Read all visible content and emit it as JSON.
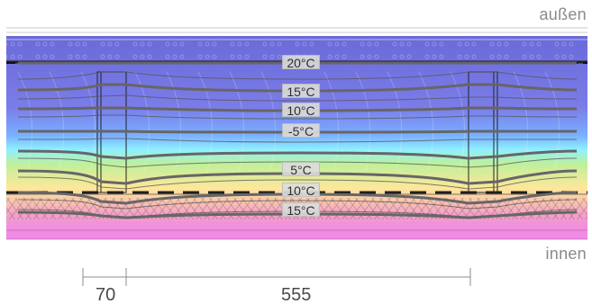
{
  "labels": {
    "outside": "außen",
    "inside": "innen"
  },
  "isotherms": [
    "20°C",
    "15°C",
    "10°C",
    "-5°C",
    "5°C",
    "10°C",
    "15°C"
  ],
  "dimensions": [
    "70",
    "555"
  ],
  "colors": {
    "gradient_top": "#6a6ad8",
    "gradient_mid_cyan": "#8ff0ff",
    "gradient_mid_green": "#bff09a",
    "gradient_mid_yellow": "#ffe79a",
    "gradient_bottom": "#f089e8",
    "isotherm_line": "#666666",
    "black_band": "#1f1f1f"
  }
}
